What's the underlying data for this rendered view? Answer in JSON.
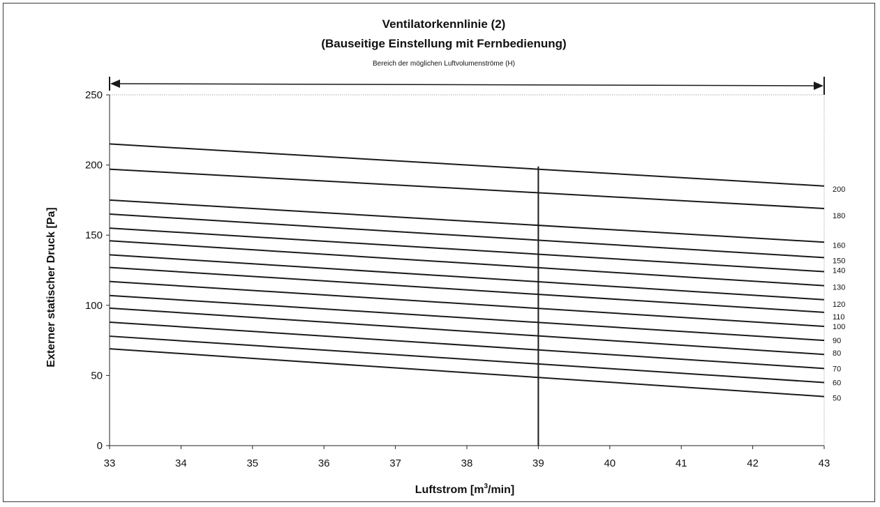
{
  "chart_data": {
    "type": "line",
    "title": "Ventilatorkennlinie (2)",
    "subtitle": "(Bauseitige Einstellung mit Fernbedienung)",
    "range_annotation": "Bereich der möglichen Luftvolumenströme (H)",
    "xlabel_main": "Luftstrom [m",
    "xlabel_sup": "3",
    "xlabel_tail": "/min]",
    "ylabel": "Externer statischer Druck [Pa]",
    "xlim": [
      33,
      43
    ],
    "ylim": [
      0,
      250
    ],
    "xticks": [
      33,
      34,
      35,
      36,
      37,
      38,
      39,
      40,
      41,
      42,
      43
    ],
    "yticks": [
      0,
      50,
      100,
      150,
      200,
      250
    ],
    "range_arrow": [
      33,
      43
    ],
    "vertical_line": {
      "x": 39,
      "y_from": 0,
      "y_to": 199
    },
    "series": [
      {
        "name": "200",
        "x": [
          33,
          43
        ],
        "values": [
          215,
          185
        ]
      },
      {
        "name": "180",
        "x": [
          33,
          43
        ],
        "values": [
          197,
          169
        ]
      },
      {
        "name": "160",
        "x": [
          33,
          43
        ],
        "values": [
          175,
          145
        ]
      },
      {
        "name": "150",
        "x": [
          33,
          43
        ],
        "values": [
          165,
          134
        ]
      },
      {
        "name": "140",
        "x": [
          33,
          43
        ],
        "values": [
          155,
          124
        ]
      },
      {
        "name": "130",
        "x": [
          33,
          43
        ],
        "values": [
          146,
          114
        ]
      },
      {
        "name": "120",
        "x": [
          33,
          43
        ],
        "values": [
          136,
          104
        ]
      },
      {
        "name": "110",
        "x": [
          33,
          43
        ],
        "values": [
          127,
          95
        ]
      },
      {
        "name": "100",
        "x": [
          33,
          43
        ],
        "values": [
          117,
          85
        ]
      },
      {
        "name": "90",
        "x": [
          33,
          43
        ],
        "values": [
          107,
          75
        ]
      },
      {
        "name": "80",
        "x": [
          33,
          43
        ],
        "values": [
          98,
          65
        ]
      },
      {
        "name": "70",
        "x": [
          33,
          43
        ],
        "values": [
          88,
          55
        ]
      },
      {
        "name": "60",
        "x": [
          33,
          43
        ],
        "values": [
          78,
          45
        ]
      },
      {
        "name": "50",
        "x": [
          33,
          43
        ],
        "values": [
          69,
          35
        ]
      }
    ],
    "label_positions": [
      {
        "name": "200",
        "y": 183
      },
      {
        "name": "180",
        "y": 164
      },
      {
        "name": "160",
        "y": 143
      },
      {
        "name": "150",
        "y": 132
      },
      {
        "name": "140",
        "y": 125
      },
      {
        "name": "130",
        "y": 113
      },
      {
        "name": "120",
        "y": 101
      },
      {
        "name": "110",
        "y": 92
      },
      {
        "name": "100",
        "y": 85
      },
      {
        "name": "90",
        "y": 75
      },
      {
        "name": "80",
        "y": 66
      },
      {
        "name": "70",
        "y": 55
      },
      {
        "name": "60",
        "y": 45
      },
      {
        "name": "50",
        "y": 34
      }
    ],
    "grid": false,
    "line_color": "#1a1a1a"
  }
}
